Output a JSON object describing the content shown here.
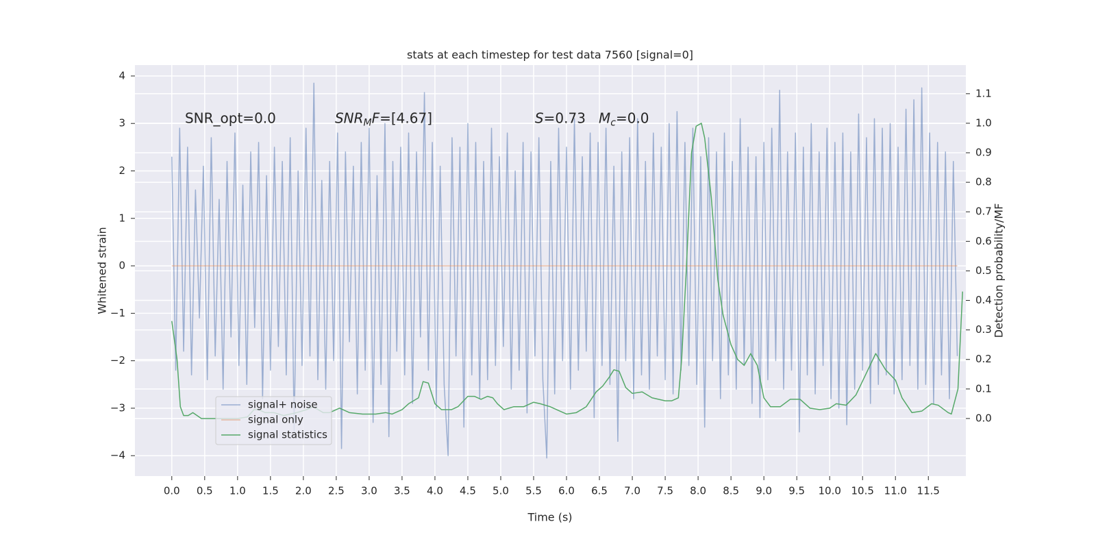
{
  "chart_data": {
    "type": "line",
    "title": "stats at each timestep for test data 7560 [signal=0]",
    "xlabel": "Time (s)",
    "ylabel": "Whitened strain",
    "y2label": "Detection probability/MF",
    "xlim": [
      -0.56,
      12.07
    ],
    "ylim": [
      -4.43,
      4.23
    ],
    "y2lim": [
      -0.195,
      1.197
    ],
    "xticks": [
      {
        "value": 0,
        "label": "0.0"
      },
      {
        "value": 0.5,
        "label": "0.5"
      },
      {
        "value": 1,
        "label": "1.0"
      },
      {
        "value": 1.5,
        "label": "1.5"
      },
      {
        "value": 2,
        "label": "2.0"
      },
      {
        "value": 2.5,
        "label": "2.5"
      },
      {
        "value": 3,
        "label": "3.0"
      },
      {
        "value": 3.5,
        "label": "3.5"
      },
      {
        "value": 4,
        "label": "4.0"
      },
      {
        "value": 4.5,
        "label": "4.5"
      },
      {
        "value": 5,
        "label": "5.0"
      },
      {
        "value": 5.5,
        "label": "5.5"
      },
      {
        "value": 6,
        "label": "6.0"
      },
      {
        "value": 6.5,
        "label": "6.5"
      },
      {
        "value": 7,
        "label": "7.0"
      },
      {
        "value": 7.5,
        "label": "7.5"
      },
      {
        "value": 8,
        "label": "8.0"
      },
      {
        "value": 8.5,
        "label": "8.5"
      },
      {
        "value": 9,
        "label": "9.0"
      },
      {
        "value": 9.5,
        "label": "9.5"
      },
      {
        "value": 10,
        "label": "10.0"
      },
      {
        "value": 10.5,
        "label": "10.5"
      },
      {
        "value": 11,
        "label": "11.0"
      },
      {
        "value": 11.5,
        "label": "11.5"
      }
    ],
    "yticks": [
      {
        "value": -4,
        "label": "−4"
      },
      {
        "value": -3,
        "label": "−3"
      },
      {
        "value": -2,
        "label": "−2"
      },
      {
        "value": -1,
        "label": "−1"
      },
      0,
      1,
      2,
      3,
      4
    ],
    "y2ticks": [
      {
        "value": 0,
        "label": "0.0"
      },
      {
        "value": 0.1,
        "label": "0.1"
      },
      {
        "value": 0.2,
        "label": "0.2"
      },
      {
        "value": 0.3,
        "label": "0.3"
      },
      {
        "value": 0.4,
        "label": "0.4"
      },
      {
        "value": 0.5,
        "label": "0.5"
      },
      {
        "value": 0.6,
        "label": "0.6"
      },
      {
        "value": 0.7,
        "label": "0.7"
      },
      {
        "value": 0.8,
        "label": "0.8"
      },
      {
        "value": 0.9,
        "label": "0.9"
      },
      {
        "value": 1.0,
        "label": "1.0"
      },
      {
        "value": 1.1,
        "label": "1.1"
      }
    ],
    "grid": true,
    "legend": "lower left",
    "annotations": [
      {
        "x": 0.2,
        "y": 3.1,
        "parts": [
          {
            "text": "SNR_opt=0.0"
          }
        ]
      },
      {
        "x": 2.48,
        "y": 3.1,
        "parts": [
          {
            "text": "SNR",
            "italic": true
          },
          {
            "text": "M",
            "italic": true,
            "sub": true
          },
          {
            "text": "F",
            "italic": true
          },
          {
            "text": "=[4.67]"
          }
        ]
      },
      {
        "x": 5.52,
        "y": 3.1,
        "parts": [
          {
            "text": "S",
            "italic": true
          },
          {
            "text": "=0.73   "
          },
          {
            "text": "M",
            "italic": true
          },
          {
            "text": "c",
            "italic": true,
            "sub": true
          },
          {
            "text": "=0.0"
          }
        ]
      }
    ],
    "series": [
      {
        "name": "signal+ noise",
        "color": "#4c72b0",
        "opacity": 0.5,
        "x": [
          0,
          0.06,
          0.12,
          0.18,
          0.24,
          0.3,
          0.36,
          0.42,
          0.48,
          0.54,
          0.6,
          0.66,
          0.72,
          0.78,
          0.84,
          0.9,
          0.96,
          1.02,
          1.08,
          1.14,
          1.2,
          1.26,
          1.32,
          1.38,
          1.44,
          1.5,
          1.56,
          1.62,
          1.68,
          1.74,
          1.8,
          1.86,
          1.92,
          1.98,
          2.04,
          2.1,
          2.16,
          2.22,
          2.28,
          2.34,
          2.4,
          2.46,
          2.52,
          2.58,
          2.64,
          2.7,
          2.76,
          2.82,
          2.88,
          2.94,
          3,
          3.06,
          3.12,
          3.18,
          3.24,
          3.3,
          3.36,
          3.42,
          3.48,
          3.54,
          3.6,
          3.66,
          3.72,
          3.78,
          3.84,
          3.9,
          3.96,
          4.02,
          4.08,
          4.14,
          4.2,
          4.26,
          4.32,
          4.38,
          4.44,
          4.5,
          4.56,
          4.62,
          4.68,
          4.74,
          4.8,
          4.86,
          4.92,
          4.98,
          5.04,
          5.1,
          5.16,
          5.22,
          5.28,
          5.34,
          5.4,
          5.46,
          5.52,
          5.58,
          5.64,
          5.7,
          5.76,
          5.82,
          5.88,
          5.94,
          6,
          6.06,
          6.12,
          6.18,
          6.24,
          6.3,
          6.36,
          6.42,
          6.48,
          6.54,
          6.6,
          6.66,
          6.72,
          6.78,
          6.84,
          6.9,
          6.96,
          7.02,
          7.08,
          7.14,
          7.2,
          7.26,
          7.32,
          7.38,
          7.44,
          7.5,
          7.56,
          7.62,
          7.68,
          7.74,
          7.8,
          7.86,
          7.92,
          7.98,
          8.04,
          8.1,
          8.16,
          8.22,
          8.28,
          8.34,
          8.4,
          8.46,
          8.52,
          8.58,
          8.64,
          8.7,
          8.76,
          8.82,
          8.88,
          8.94,
          9,
          9.06,
          9.12,
          9.18,
          9.24,
          9.3,
          9.36,
          9.42,
          9.48,
          9.54,
          9.6,
          9.66,
          9.72,
          9.78,
          9.84,
          9.9,
          9.96,
          10.02,
          10.08,
          10.14,
          10.2,
          10.26,
          10.32,
          10.38,
          10.44,
          10.5,
          10.56,
          10.62,
          10.68,
          10.74,
          10.8,
          10.86,
          10.92,
          10.98,
          11.04,
          11.1,
          11.16,
          11.22,
          11.28,
          11.34,
          11.4,
          11.46,
          11.52,
          11.58,
          11.64,
          11.7,
          11.76,
          11.82,
          11.88,
          11.94
        ],
        "values": [
          2.3,
          -2.2,
          2.9,
          -1.8,
          2.5,
          -2.3,
          1.6,
          -1.1,
          2.1,
          -2.4,
          2.7,
          -1.9,
          1.4,
          -2.6,
          2.2,
          -1.5,
          2.8,
          -2.1,
          1.7,
          -2.5,
          2.4,
          -1.3,
          2.6,
          -2.8,
          1.9,
          -2.2,
          2.5,
          -1.7,
          2.2,
          -2.3,
          2.7,
          -3.5,
          2.0,
          -2.1,
          2.9,
          -1.9,
          3.85,
          -2.4,
          1.8,
          -2.6,
          2.2,
          -2.0,
          2.8,
          -3.85,
          2.4,
          -1.6,
          2.1,
          -2.7,
          2.6,
          -2.2,
          2.9,
          -3.3,
          1.9,
          -2.5,
          3.0,
          -3.6,
          2.2,
          -1.8,
          2.5,
          -2.3,
          2.8,
          -2.9,
          2.4,
          -1.5,
          3.65,
          -2.2,
          2.6,
          -3.0,
          2.1,
          -2.5,
          -4.0,
          2.7,
          -1.9,
          2.5,
          -3.4,
          3.0,
          -2.3,
          2.6,
          -2.8,
          2.2,
          -2.4,
          2.9,
          -2.1,
          2.3,
          -1.7,
          2.8,
          -2.6,
          2.0,
          -2.2,
          2.6,
          -3.1,
          2.4,
          -1.9,
          2.7,
          -2.4,
          -4.05,
          2.2,
          -2.7,
          2.9,
          -2.0,
          2.5,
          -2.6,
          3.1,
          -2.2,
          2.3,
          -1.8,
          2.8,
          -3.2,
          2.6,
          -2.1,
          2.9,
          -2.5,
          2.1,
          -3.7,
          2.4,
          -2.0,
          2.7,
          -2.8,
          3.1,
          -2.3,
          2.2,
          -2.6,
          2.8,
          -1.9,
          2.5,
          -2.4,
          3.0,
          -2.7,
          3.25,
          -2.2,
          2.6,
          -2.1,
          2.9,
          -2.5,
          2.3,
          -3.4,
          2.7,
          -2.0,
          2.4,
          -2.8,
          2.8,
          -2.3,
          2.2,
          -2.6,
          3.1,
          -2.1,
          2.5,
          -2.9,
          2.3,
          -3.2,
          2.6,
          -2.4,
          2.9,
          -2.0,
          3.7,
          -2.6,
          2.4,
          -2.2,
          2.8,
          -3.5,
          2.5,
          -2.3,
          3.0,
          -2.7,
          2.4,
          -2.1,
          2.9,
          -2.8,
          2.6,
          -3.0,
          2.8,
          -3.35,
          2.4,
          -2.6,
          3.2,
          -2.2,
          2.7,
          -2.9,
          3.1,
          -2.5,
          2.9,
          -2.3,
          3.0,
          -2.7,
          2.5,
          -2.4,
          3.3,
          -2.1,
          3.5,
          -2.6,
          3.75,
          -2.5,
          2.8,
          -2.9,
          2.6,
          -2.3,
          2.4,
          -2.8,
          2.2,
          -1.9
        ]
      },
      {
        "name": "signal only",
        "color": "#dd8452",
        "opacity": 0.5,
        "x": [
          0,
          11.94
        ],
        "values": [
          0,
          0
        ]
      },
      {
        "name": "signal statistics",
        "color": "#55a868",
        "axis": "y2",
        "x": [
          0,
          0.08,
          0.13,
          0.18,
          0.25,
          0.32,
          0.45,
          0.7,
          1.0,
          1.15,
          1.25,
          1.32,
          1.42,
          1.55,
          1.7,
          1.9,
          2.05,
          2.15,
          2.3,
          2.4,
          2.55,
          2.7,
          2.9,
          3.1,
          3.25,
          3.35,
          3.5,
          3.6,
          3.75,
          3.82,
          3.9,
          4.0,
          4.1,
          4.25,
          4.35,
          4.5,
          4.6,
          4.7,
          4.8,
          4.88,
          4.95,
          5.05,
          5.2,
          5.35,
          5.5,
          5.6,
          5.75,
          5.9,
          6.0,
          6.15,
          6.3,
          6.45,
          6.55,
          6.65,
          6.72,
          6.8,
          6.9,
          7.0,
          7.15,
          7.3,
          7.5,
          7.6,
          7.7,
          7.75,
          7.82,
          7.9,
          7.97,
          8.05,
          8.1,
          8.2,
          8.3,
          8.38,
          8.5,
          8.6,
          8.7,
          8.8,
          8.9,
          9.0,
          9.1,
          9.25,
          9.4,
          9.55,
          9.7,
          9.85,
          10.0,
          10.1,
          10.25,
          10.4,
          10.55,
          10.7,
          10.85,
          11.0,
          11.1,
          11.25,
          11.4,
          11.55,
          11.65,
          11.8,
          11.85,
          11.95,
          12.02
        ],
        "values": [
          0.33,
          0.2,
          0.04,
          0.01,
          0.01,
          0.02,
          0.0,
          0.0,
          0.0,
          0.005,
          0.03,
          0.03,
          0.02,
          0.02,
          0.01,
          0.02,
          0.03,
          0.04,
          0.02,
          0.02,
          0.035,
          0.02,
          0.015,
          0.015,
          0.02,
          0.015,
          0.03,
          0.05,
          0.07,
          0.125,
          0.12,
          0.05,
          0.03,
          0.03,
          0.04,
          0.075,
          0.075,
          0.065,
          0.075,
          0.07,
          0.05,
          0.03,
          0.04,
          0.04,
          0.055,
          0.05,
          0.04,
          0.025,
          0.015,
          0.02,
          0.04,
          0.09,
          0.11,
          0.14,
          0.165,
          0.16,
          0.105,
          0.085,
          0.09,
          0.07,
          0.06,
          0.06,
          0.07,
          0.2,
          0.5,
          0.9,
          0.99,
          1.0,
          0.95,
          0.75,
          0.47,
          0.35,
          0.25,
          0.2,
          0.18,
          0.22,
          0.18,
          0.07,
          0.04,
          0.04,
          0.065,
          0.065,
          0.035,
          0.03,
          0.035,
          0.05,
          0.045,
          0.08,
          0.15,
          0.22,
          0.165,
          0.13,
          0.07,
          0.02,
          0.025,
          0.05,
          0.045,
          0.02,
          0.015,
          0.1,
          0.43
        ]
      }
    ]
  }
}
